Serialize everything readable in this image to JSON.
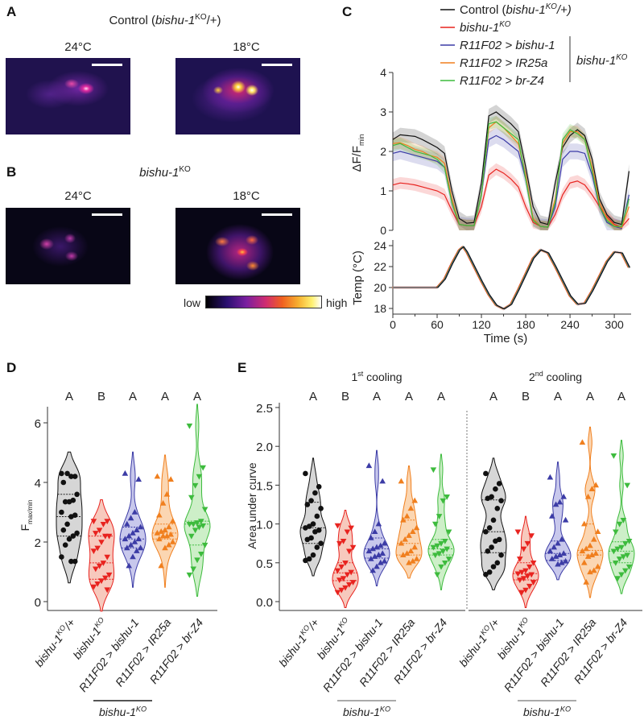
{
  "panels": {
    "A": "A",
    "B": "B",
    "C": "C",
    "D": "D",
    "E": "E"
  },
  "imaging": {
    "A_title": {
      "pre": "Control (",
      "it": "bishu-1",
      "sup": "KO",
      "post": "/+)"
    },
    "B_title": {
      "it": "bishu-1",
      "sup": "KO"
    },
    "temps": [
      "24°C",
      "18°C"
    ],
    "colorbar": {
      "low": "low",
      "high": "high"
    }
  },
  "genotypes": [
    {
      "it": "bishu-1",
      "sup": "KO",
      "post": "/+"
    },
    {
      "it": "bishu-1",
      "sup": "KO",
      "post": ""
    },
    {
      "it": "R11F02 > bishu-1",
      "sup": "",
      "post": ""
    },
    {
      "it": "R11F02 > IR25a",
      "sup": "",
      "post": ""
    },
    {
      "it": "R11F02 > br-Z4",
      "sup": "",
      "post": ""
    }
  ],
  "group_bracket": {
    "it": "bishu-1",
    "sup": "KO"
  },
  "colors": {
    "control": "#111111",
    "ko": "#e8231f",
    "bishu": "#3c3ca6",
    "ir25a": "#f07f1e",
    "brz4": "#3dbb3d"
  },
  "fills": {
    "control": "#d6d6d6",
    "ko": "#f7c9bd",
    "bishu": "#c8c8ec",
    "ir25a": "#fbd6b2",
    "brz4": "#cdefc8"
  },
  "chart_data": [
    {
      "type": "line",
      "panel": "C-top",
      "ylabel": {
        "main": "ΔF/F",
        "sub": "min"
      },
      "ylim": [
        0,
        4
      ],
      "yticks": [
        0,
        1,
        2,
        3,
        4
      ],
      "xlim": [
        0,
        322
      ],
      "legend": [
        {
          "key": "control",
          "pre": "Control (",
          "it": "bishu-1",
          "sup": "KO",
          "post": "/+)"
        },
        {
          "key": "ko",
          "pre": "",
          "it": "bishu-1",
          "sup": "KO",
          "post": ""
        },
        {
          "key": "bishu",
          "pre": "",
          "it": "R11F02 > bishu-1",
          "sup": "",
          "post": ""
        },
        {
          "key": "ir25a",
          "pre": "",
          "it": "R11F02 > IR25a",
          "sup": "",
          "post": ""
        },
        {
          "key": "brz4",
          "pre": "",
          "it": "R11F02 > br-Z4",
          "sup": "",
          "post": ""
        }
      ],
      "legend_bracket": {
        "it": "bishu-1",
        "sup": "KO"
      },
      "x": [
        0,
        10,
        20,
        30,
        40,
        50,
        60,
        70,
        80,
        90,
        100,
        110,
        120,
        130,
        140,
        150,
        160,
        170,
        180,
        190,
        200,
        210,
        220,
        230,
        240,
        250,
        260,
        270,
        280,
        290,
        300,
        310,
        320
      ],
      "series": [
        {
          "key": "control",
          "sem": 0.18,
          "values": [
            2.3,
            2.42,
            2.4,
            2.38,
            2.3,
            2.2,
            2.1,
            1.95,
            1.0,
            0.3,
            0.18,
            0.2,
            1.2,
            2.9,
            3.0,
            2.85,
            2.7,
            2.5,
            1.6,
            0.6,
            0.2,
            0.15,
            1.2,
            2.1,
            2.4,
            2.55,
            2.4,
            1.8,
            0.8,
            0.4,
            0.2,
            0.15,
            1.5
          ]
        },
        {
          "key": "ko",
          "sem": 0.15,
          "values": [
            1.15,
            1.2,
            1.18,
            1.15,
            1.1,
            1.05,
            1.0,
            0.9,
            0.5,
            0.15,
            0.12,
            0.12,
            0.6,
            1.4,
            1.55,
            1.45,
            1.3,
            1.1,
            0.6,
            0.2,
            0.1,
            0.08,
            0.4,
            0.9,
            1.2,
            1.25,
            1.15,
            0.9,
            0.6,
            0.35,
            0.15,
            0.08,
            0.3
          ]
        },
        {
          "key": "bishu",
          "sem": 0.2,
          "values": [
            1.95,
            2.0,
            1.95,
            1.9,
            1.85,
            1.8,
            1.75,
            1.6,
            0.7,
            0.15,
            0.12,
            0.12,
            0.9,
            2.3,
            2.4,
            2.3,
            2.15,
            2.0,
            1.3,
            0.3,
            0.1,
            0.08,
            0.6,
            1.8,
            2.0,
            2.0,
            1.95,
            1.4,
            0.6,
            0.2,
            0.1,
            0.05,
            0.9
          ]
        },
        {
          "key": "ir25a",
          "sem": 0.15,
          "values": [
            2.2,
            2.22,
            2.15,
            2.05,
            2.0,
            1.9,
            1.85,
            1.7,
            0.8,
            0.15,
            0.12,
            0.12,
            0.9,
            2.6,
            2.75,
            2.6,
            2.4,
            2.2,
            1.4,
            0.3,
            0.1,
            0.08,
            0.8,
            2.2,
            2.5,
            2.5,
            2.3,
            1.6,
            0.7,
            0.3,
            0.12,
            0.07,
            0.6
          ]
        },
        {
          "key": "brz4",
          "sem": 0.15,
          "values": [
            2.15,
            2.2,
            2.1,
            2.0,
            1.95,
            1.9,
            1.8,
            1.6,
            0.7,
            0.15,
            0.12,
            0.12,
            0.9,
            2.7,
            2.75,
            2.6,
            2.45,
            2.3,
            1.3,
            0.25,
            0.1,
            0.08,
            0.7,
            2.3,
            2.55,
            2.45,
            2.3,
            1.5,
            0.6,
            0.25,
            0.1,
            0.1,
            0.8
          ]
        }
      ]
    },
    {
      "type": "line",
      "panel": "C-bottom",
      "ylabel": "Temp (°C)",
      "xlabel": "Time (s)",
      "ylim": [
        18,
        24
      ],
      "yticks": [
        18,
        20,
        22,
        24
      ],
      "xticks": [
        0,
        60,
        120,
        180,
        240,
        300
      ],
      "x": [
        0,
        10,
        20,
        30,
        40,
        50,
        60,
        70,
        80,
        90,
        95,
        100,
        110,
        120,
        130,
        140,
        150,
        160,
        170,
        180,
        190,
        200,
        210,
        220,
        230,
        240,
        250,
        260,
        270,
        280,
        290,
        300,
        310,
        320
      ],
      "values": [
        20,
        20,
        20,
        20,
        20,
        20,
        20,
        20.8,
        22.3,
        23.6,
        23.9,
        23.4,
        22.0,
        20.6,
        19.3,
        18.3,
        17.95,
        18.4,
        19.8,
        21.3,
        22.8,
        23.6,
        23.3,
        22.0,
        20.6,
        19.2,
        18.4,
        18.5,
        19.7,
        21.1,
        22.5,
        23.4,
        23.3,
        21.9
      ],
      "sem": 0.15
    },
    {
      "type": "violin",
      "panel": "D",
      "ylabel": {
        "main": "F",
        "sub": "max/min"
      },
      "ylim": [
        0,
        6.5
      ],
      "yticks": [
        0,
        2,
        4,
        6
      ],
      "letters": [
        "A",
        "B",
        "A",
        "A",
        "A"
      ],
      "groups": [
        {
          "key": "control",
          "marker": "circle",
          "median": 2.85,
          "q1": 2.2,
          "q3": 3.6,
          "values": [
            4.3,
            4.2,
            4.2,
            4.3,
            4.0,
            3.6,
            3.4,
            3.35,
            3.35,
            3.0,
            2.9,
            2.85,
            2.6,
            2.4,
            2.3,
            2.2,
            2.1,
            1.9,
            1.5,
            1.35,
            1.35
          ]
        },
        {
          "key": "ko",
          "marker": "down",
          "median": 1.3,
          "q1": 0.75,
          "q3": 2.2,
          "values": [
            2.7,
            2.7,
            2.6,
            2.4,
            2.3,
            2.2,
            2.2,
            2.0,
            1.8,
            1.7,
            1.5,
            1.3,
            1.2,
            1.1,
            0.9,
            0.8,
            0.7,
            0.6,
            0.5,
            0.4
          ]
        },
        {
          "key": "bishu",
          "marker": "up",
          "median": 2.1,
          "q1": 1.8,
          "q3": 2.5,
          "values": [
            4.3,
            4.1,
            3.0,
            2.8,
            2.6,
            2.5,
            2.4,
            2.3,
            2.2,
            2.1,
            2.1,
            2.0,
            1.9,
            1.8,
            1.8,
            1.7,
            1.5,
            1.2
          ]
        },
        {
          "key": "ir25a",
          "marker": "up",
          "median": 2.3,
          "q1": 2.1,
          "q3": 2.6,
          "values": [
            4.2,
            4.1,
            3.6,
            3.3,
            2.9,
            2.7,
            2.5,
            2.4,
            2.35,
            2.3,
            2.25,
            2.2,
            2.2,
            2.1,
            2.0,
            1.9,
            1.8,
            1.2
          ]
        },
        {
          "key": "brz4",
          "marker": "down",
          "median": 2.6,
          "q1": 1.9,
          "q3": 2.7,
          "values": [
            5.9,
            4.5,
            4.2,
            3.9,
            3.5,
            3.1,
            2.7,
            2.65,
            2.6,
            2.6,
            2.55,
            2.5,
            2.4,
            2.2,
            1.9,
            1.6,
            1.4,
            1.1,
            0.9
          ]
        }
      ]
    },
    {
      "type": "violin",
      "panel": "E-1",
      "title": {
        "pre": "1",
        "sup": "st",
        "post": " cooling"
      },
      "ylabel": "Area under curve",
      "ylim": [
        0,
        2.5
      ],
      "yticks": [
        "0.0",
        "0.5",
        "1.0",
        "1.5",
        "2.0",
        "2.5"
      ],
      "letters": [
        "A",
        "B",
        "A",
        "A",
        "A"
      ],
      "groups": [
        {
          "key": "control",
          "marker": "circle",
          "median": 0.95,
          "q1": 0.75,
          "q3": 1.28,
          "values": [
            1.65,
            1.48,
            1.4,
            1.3,
            1.25,
            1.2,
            1.1,
            1.0,
            0.97,
            0.95,
            0.92,
            0.9,
            0.82,
            0.8,
            0.75,
            0.7,
            0.6,
            0.55,
            0.53
          ]
        },
        {
          "key": "ko",
          "marker": "down",
          "median": 0.37,
          "q1": 0.27,
          "q3": 0.5,
          "values": [
            0.98,
            0.95,
            0.9,
            0.78,
            0.75,
            0.7,
            0.65,
            0.5,
            0.45,
            0.4,
            0.38,
            0.35,
            0.3,
            0.28,
            0.25,
            0.22,
            0.18,
            0.15,
            0.12
          ]
        },
        {
          "key": "bishu",
          "marker": "up",
          "median": 0.68,
          "q1": 0.56,
          "q3": 0.82,
          "values": [
            1.75,
            1.55,
            1.0,
            0.9,
            0.82,
            0.75,
            0.72,
            0.7,
            0.68,
            0.65,
            0.62,
            0.6,
            0.58,
            0.55,
            0.52,
            0.5,
            0.45,
            0.4
          ]
        },
        {
          "key": "ir25a",
          "marker": "up",
          "median": 0.75,
          "q1": 0.6,
          "q3": 1.05,
          "values": [
            1.55,
            1.3,
            1.2,
            1.1,
            1.05,
            0.95,
            0.9,
            0.85,
            0.8,
            0.75,
            0.7,
            0.65,
            0.62,
            0.6,
            0.55,
            0.52,
            0.5
          ]
        },
        {
          "key": "brz4",
          "marker": "down",
          "median": 0.68,
          "q1": 0.6,
          "q3": 0.8,
          "values": [
            1.7,
            1.35,
            1.3,
            1.1,
            1.0,
            0.9,
            0.78,
            0.75,
            0.72,
            0.7,
            0.68,
            0.65,
            0.62,
            0.6,
            0.55,
            0.5,
            0.45,
            0.35
          ]
        }
      ]
    },
    {
      "type": "violin",
      "panel": "E-2",
      "title": {
        "pre": "2",
        "sup": "nd",
        "post": " cooling"
      },
      "ylim": [
        0,
        2.5
      ],
      "letters": [
        "A",
        "B",
        "A",
        "A",
        "A"
      ],
      "groups": [
        {
          "key": "control",
          "marker": "circle",
          "median": 0.9,
          "q1": 0.63,
          "q3": 1.31,
          "values": [
            1.65,
            1.52,
            1.45,
            1.35,
            1.33,
            1.3,
            1.2,
            1.05,
            0.95,
            0.9,
            0.8,
            0.78,
            0.7,
            0.65,
            0.6,
            0.5,
            0.45,
            0.38,
            0.35
          ]
        },
        {
          "key": "ko",
          "marker": "down",
          "median": 0.36,
          "q1": 0.28,
          "q3": 0.5,
          "values": [
            0.9,
            0.85,
            0.75,
            0.68,
            0.55,
            0.5,
            0.45,
            0.4,
            0.38,
            0.36,
            0.35,
            0.33,
            0.3,
            0.28,
            0.25,
            0.2,
            0.15,
            0.12
          ]
        },
        {
          "key": "bishu",
          "marker": "up",
          "median": 0.62,
          "q1": 0.53,
          "q3": 0.78,
          "values": [
            1.6,
            1.35,
            1.28,
            1.25,
            1.1,
            1.05,
            0.8,
            0.75,
            0.7,
            0.65,
            0.62,
            0.6,
            0.58,
            0.55,
            0.52,
            0.5,
            0.48
          ]
        },
        {
          "key": "ir25a",
          "marker": "up",
          "median": 0.66,
          "q1": 0.6,
          "q3": 1.0,
          "values": [
            2.05,
            1.5,
            1.45,
            1.35,
            1.0,
            0.9,
            0.8,
            0.72,
            0.68,
            0.65,
            0.62,
            0.6,
            0.58,
            0.5,
            0.45,
            0.4,
            0.38,
            0.25
          ]
        },
        {
          "key": "brz4",
          "marker": "down",
          "median": 0.65,
          "q1": 0.5,
          "q3": 0.77,
          "values": [
            1.88,
            1.5,
            1.05,
            1.0,
            0.9,
            0.78,
            0.75,
            0.7,
            0.68,
            0.65,
            0.6,
            0.58,
            0.55,
            0.5,
            0.45,
            0.4,
            0.35,
            0.3
          ]
        }
      ]
    }
  ]
}
